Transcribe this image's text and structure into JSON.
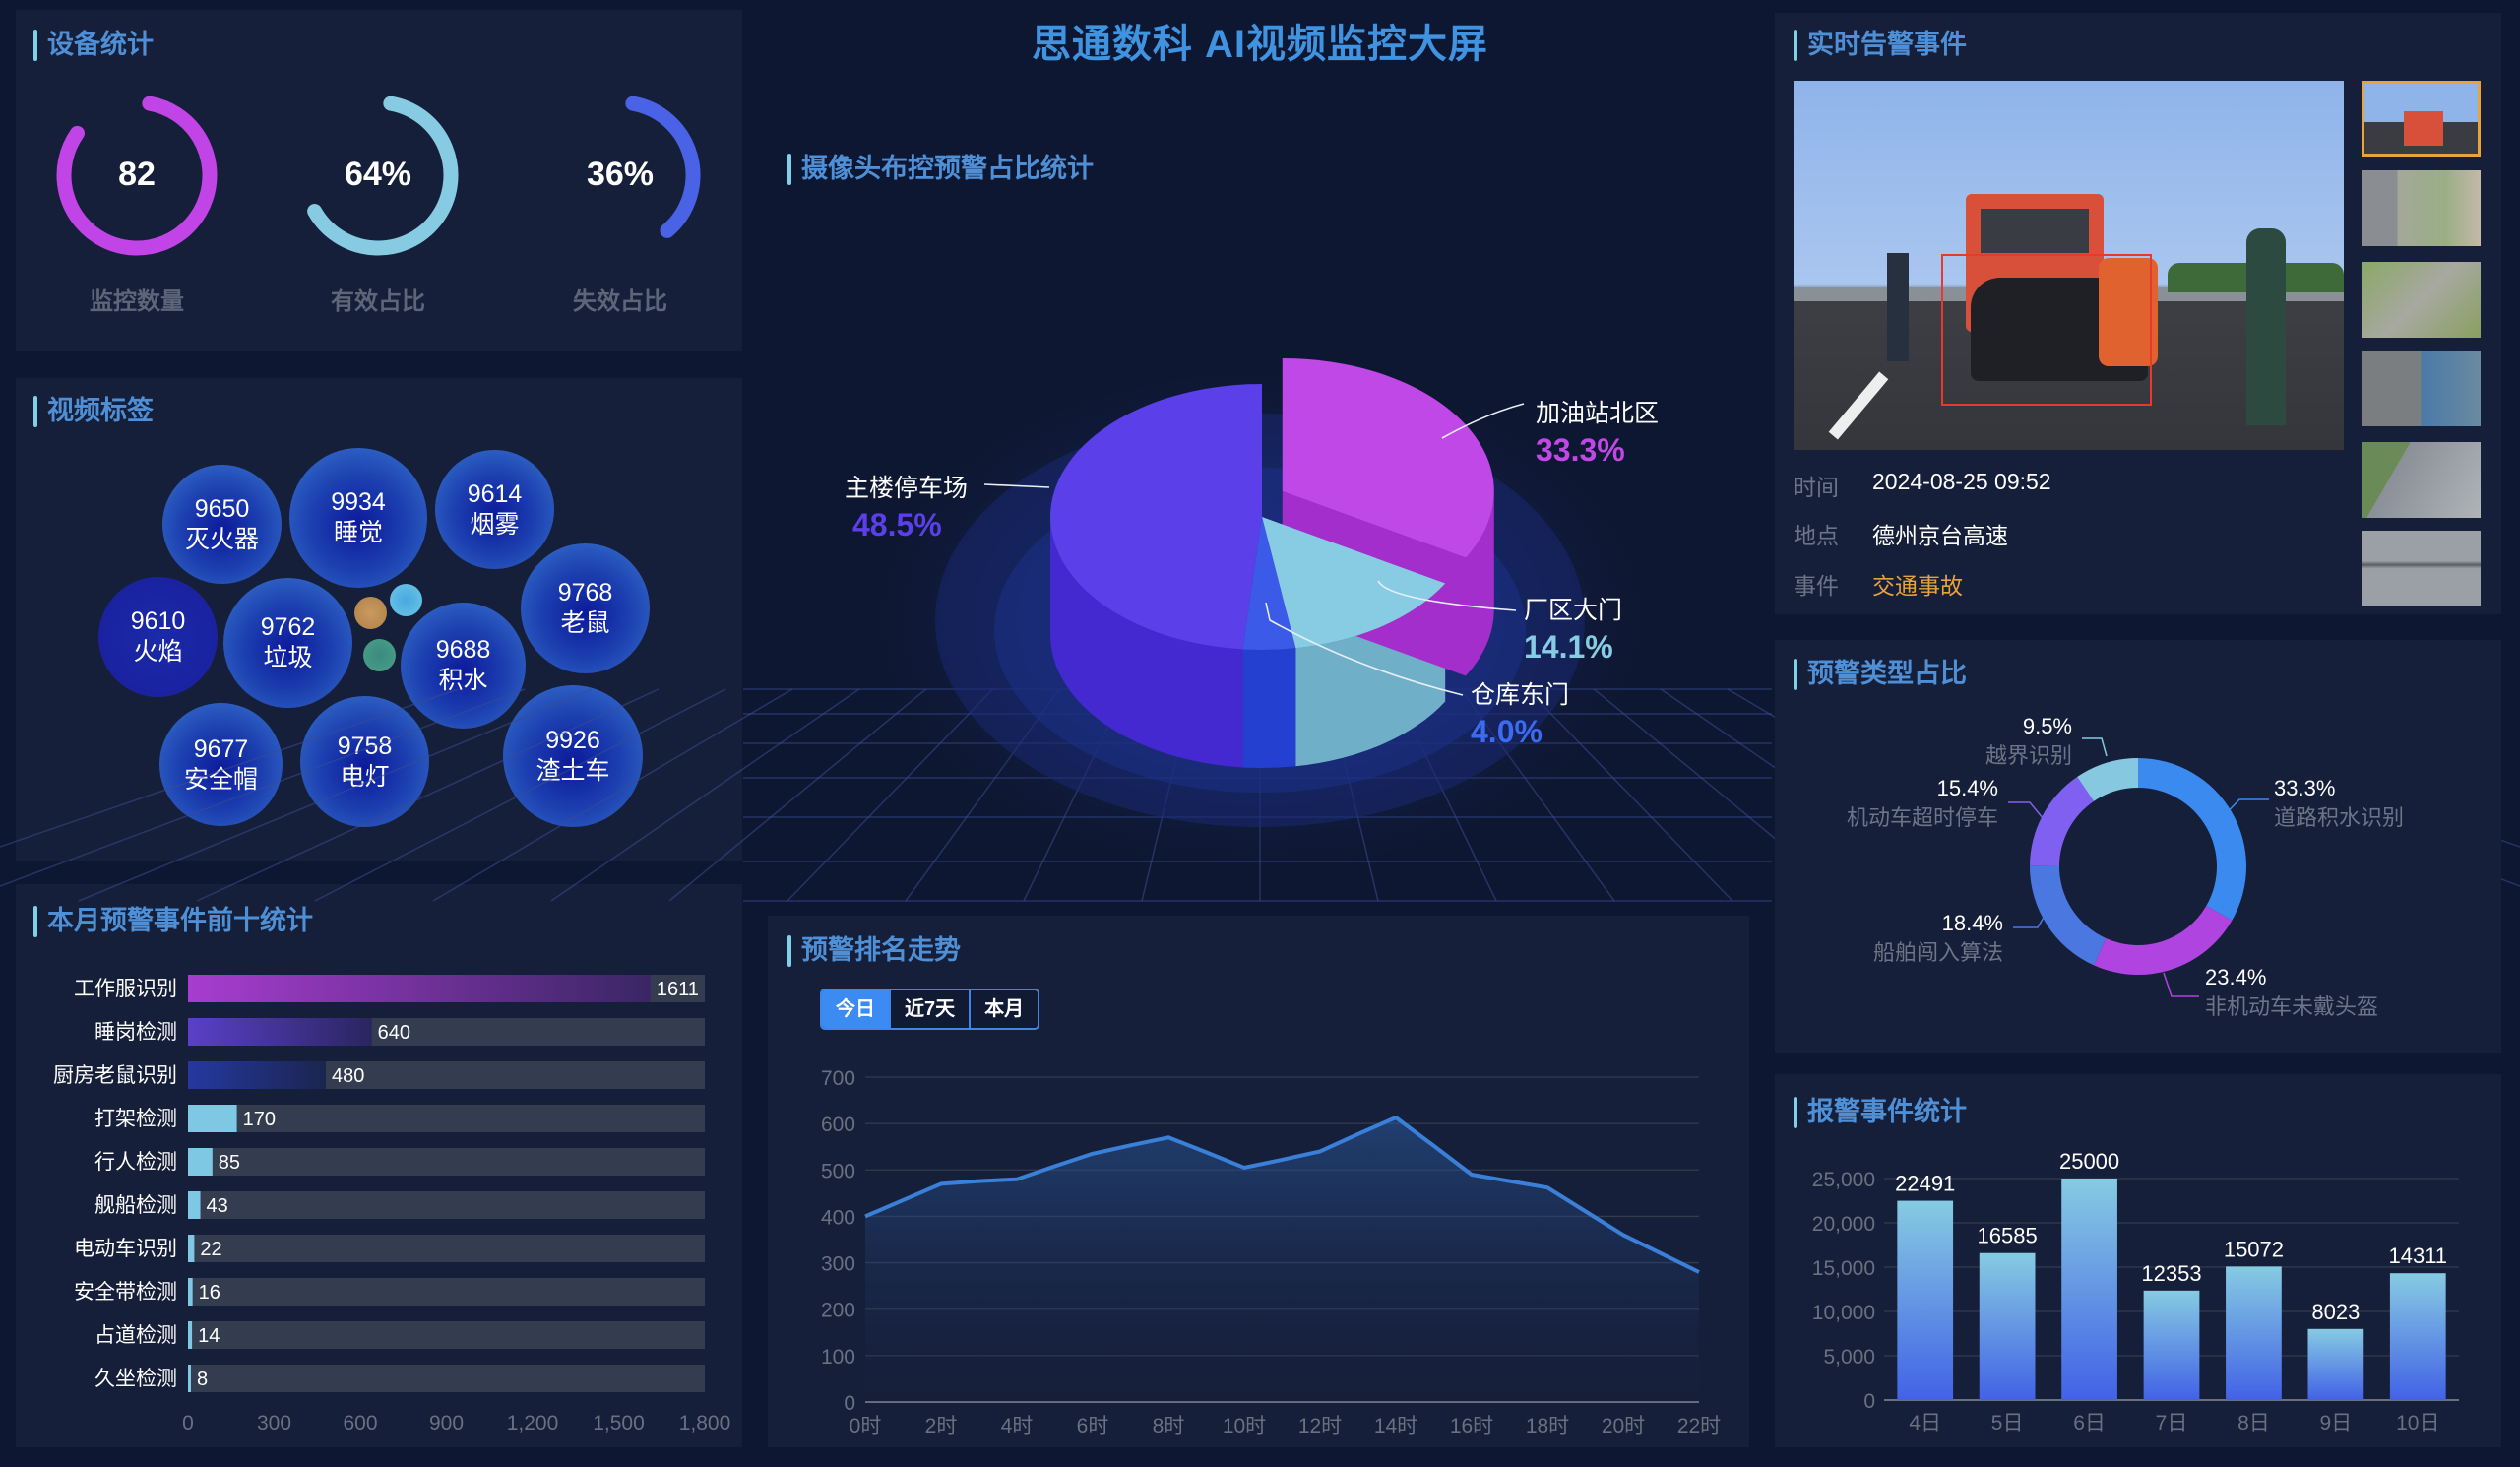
{
  "header": {
    "title": "思通数科 AI视频监控大屏"
  },
  "device_stats": {
    "title": "设备统计",
    "gauges": [
      {
        "value": "82",
        "label": "监控数量",
        "percent": 82,
        "color": "#c044e6"
      },
      {
        "value": "64%",
        "label": "有效占比",
        "percent": 64,
        "color": "#86cbe2"
      },
      {
        "value": "36%",
        "label": "失效占比",
        "percent": 36,
        "color": "#4a62e6"
      }
    ]
  },
  "video_tags": {
    "title": "视频标签",
    "bubbles": [
      {
        "count": "9650",
        "label": "灭火器"
      },
      {
        "count": "9934",
        "label": "睡觉"
      },
      {
        "count": "9614",
        "label": "烟雾"
      },
      {
        "count": "9610",
        "label": "火焰"
      },
      {
        "count": "9762",
        "label": "垃圾"
      },
      {
        "count": "9688",
        "label": "积水"
      },
      {
        "count": "9768",
        "label": "老鼠"
      },
      {
        "count": "9677",
        "label": "安全帽"
      },
      {
        "count": "9758",
        "label": "电灯"
      },
      {
        "count": "9926",
        "label": "渣土车"
      }
    ],
    "dot_colors": [
      "#c99a60",
      "#5ab8e0",
      "#4a9a86"
    ]
  },
  "top10": {
    "title": "本月预警事件前十统计",
    "chart_data": {
      "type": "bar",
      "orientation": "horizontal",
      "categories": [
        "工作服识别",
        "睡岗检测",
        "厨房老鼠识别",
        "打架检测",
        "行人检测",
        "舰船检测",
        "电动车识别",
        "安全带检测",
        "占道检测",
        "久坐检测"
      ],
      "values": [
        1611,
        640,
        480,
        170,
        85,
        43,
        22,
        16,
        14,
        8
      ],
      "xlim": [
        0,
        1800
      ],
      "xticks": [
        "0",
        "300",
        "600",
        "900",
        "1,200",
        "1,500",
        "1,800"
      ]
    }
  },
  "camera_pie": {
    "title": "摄像头布控预警占比统计",
    "chart_data": {
      "type": "pie",
      "style": "3d",
      "slices": [
        {
          "label": "加油站北区",
          "value": 33.3,
          "pct": "33.3%",
          "color": "#c048e6"
        },
        {
          "label": "厂区大门",
          "value": 14.1,
          "pct": "14.1%",
          "color": "#88cce4"
        },
        {
          "label": "仓库东门",
          "value": 4.0,
          "pct": "4.0%",
          "color": "#3c5ae8"
        },
        {
          "label": "主楼停车场",
          "value": 48.5,
          "pct": "48.5%",
          "color": "#5b3fe8"
        }
      ]
    }
  },
  "trend": {
    "title": "预警排名走势",
    "tabs": [
      {
        "label": "今日",
        "active": true
      },
      {
        "label": "近7天"
      },
      {
        "label": "本月"
      }
    ],
    "chart_data": {
      "type": "area",
      "x": [
        0,
        1,
        2,
        3,
        4,
        5,
        6,
        7,
        8,
        9,
        10,
        11,
        12,
        13,
        14,
        15,
        16,
        17,
        18,
        19,
        20,
        21,
        22
      ],
      "values": [
        400,
        435,
        470,
        476,
        480,
        508,
        535,
        553,
        570,
        538,
        505,
        522,
        540,
        577,
        613,
        552,
        490,
        476,
        462,
        411,
        360,
        320,
        280
      ],
      "xticks": [
        "0时",
        "2时",
        "4时",
        "6时",
        "8时",
        "10时",
        "12时",
        "14时",
        "16时",
        "18时",
        "20时",
        "22时"
      ],
      "yticks": [
        "0",
        "100",
        "200",
        "300",
        "400",
        "500",
        "600",
        "700"
      ],
      "ylim": [
        0,
        700
      ],
      "grid": true,
      "color": "#3a7fd8"
    }
  },
  "realtime_alert": {
    "title": "实时告警事件",
    "rows": [
      {
        "label": "时间",
        "value": "2024-08-25 09:52"
      },
      {
        "label": "地点",
        "value": "德州京台高速"
      },
      {
        "label": "事件",
        "value": "交通事故",
        "highlight": "#e8a33a"
      }
    ],
    "thumbnail_count": 6,
    "selected_thumbnail": 0
  },
  "alert_types": {
    "title": "预警类型占比",
    "chart_data": {
      "type": "pie",
      "style": "donut",
      "slices": [
        {
          "label": "道路积水识别",
          "value": 33.3,
          "pct": "33.3%",
          "color": "#3a8af0"
        },
        {
          "label": "非机动车未戴头盔",
          "value": 23.4,
          "pct": "23.4%",
          "color": "#b044e0"
        },
        {
          "label": "船舶闯入算法",
          "value": 18.4,
          "pct": "18.4%",
          "color": "#4a78e0"
        },
        {
          "label": "机动车超时停车",
          "value": 15.4,
          "pct": "15.4%",
          "color": "#8060f0"
        },
        {
          "label": "越界识别",
          "value": 9.5,
          "pct": "9.5%",
          "color": "#85c8e0"
        }
      ]
    }
  },
  "alarm_stats": {
    "title": "报警事件统计",
    "chart_data": {
      "type": "bar",
      "categories": [
        "4日",
        "5日",
        "6日",
        "7日",
        "8日",
        "9日",
        "10日"
      ],
      "values": [
        22491,
        16585,
        25000,
        12353,
        15072,
        8023,
        14311
      ],
      "ylim": [
        0,
        25000
      ],
      "yticks": [
        "0",
        "5,000",
        "10,000",
        "15,000",
        "20,000",
        "25,000"
      ],
      "grid": true
    }
  }
}
